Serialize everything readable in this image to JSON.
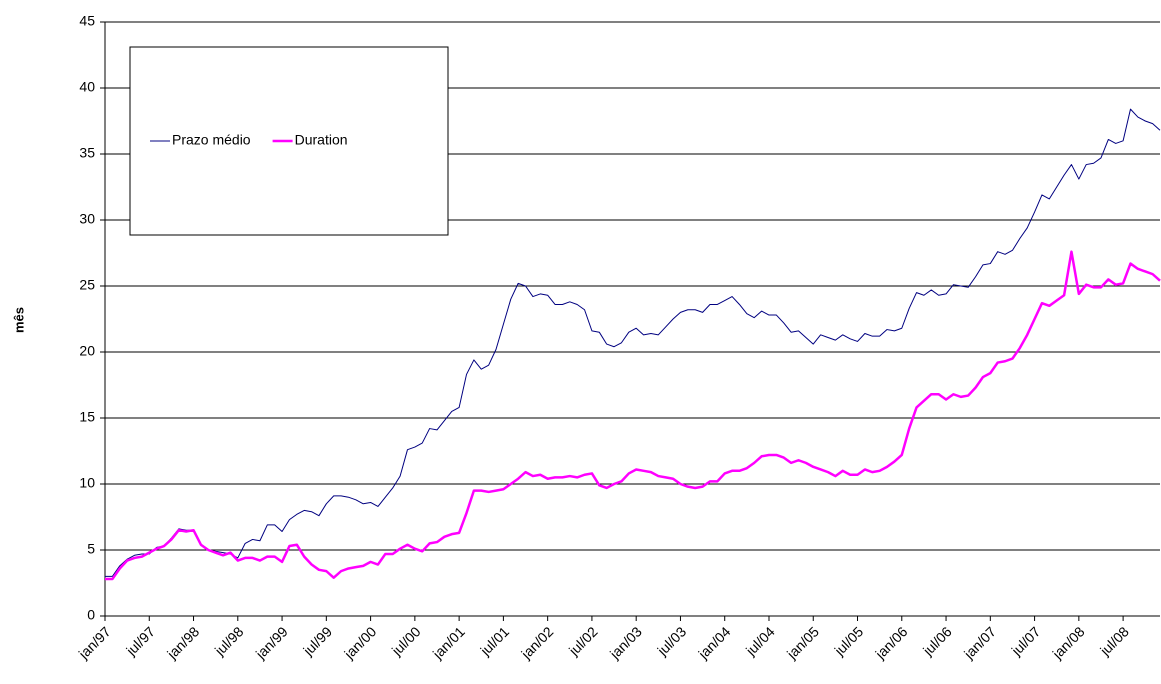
{
  "chart_data": {
    "type": "line",
    "y_label": "mês",
    "categories": [
      "jan/97",
      null,
      null,
      null,
      null,
      null,
      "jul/97",
      null,
      null,
      null,
      null,
      null,
      "jan/98",
      null,
      null,
      null,
      null,
      null,
      "jul/98",
      null,
      null,
      null,
      null,
      null,
      "jan/99",
      null,
      null,
      null,
      null,
      null,
      "jul/99",
      null,
      null,
      null,
      null,
      null,
      "jan/00",
      null,
      null,
      null,
      null,
      null,
      "jul/00",
      null,
      null,
      null,
      null,
      null,
      "jan/01",
      null,
      null,
      null,
      null,
      null,
      "jul/01",
      null,
      null,
      null,
      null,
      null,
      "jan/02",
      null,
      null,
      null,
      null,
      null,
      "jul/02",
      null,
      null,
      null,
      null,
      null,
      "jan/03",
      null,
      null,
      null,
      null,
      null,
      "jul/03",
      null,
      null,
      null,
      null,
      null,
      "jan/04",
      null,
      null,
      null,
      null,
      null,
      "jul/04",
      null,
      null,
      null,
      null,
      null,
      "jan/05",
      null,
      null,
      null,
      null,
      null,
      "jul/05",
      null,
      null,
      null,
      null,
      null,
      "jan/06",
      null,
      null,
      null,
      null,
      null,
      "jul/06",
      null,
      null,
      null,
      null,
      null,
      "jan/07",
      null,
      null,
      null,
      null,
      null,
      "jul/07",
      null,
      null,
      null,
      null,
      null,
      "jan/08",
      null,
      null,
      null,
      null,
      null,
      "jul/08",
      null,
      null,
      null,
      null,
      null
    ],
    "series": [
      {
        "name": "Prazo médio",
        "color": "#000080",
        "width": 1,
        "values": [
          3.0,
          3.0,
          3.8,
          4.3,
          4.6,
          4.7,
          4.7,
          5.2,
          5.3,
          5.9,
          6.6,
          6.5,
          6.5,
          5.4,
          5.0,
          4.9,
          4.8,
          4.7,
          4.4,
          5.5,
          5.8,
          5.7,
          6.9,
          6.9,
          6.4,
          7.3,
          7.7,
          8.0,
          7.9,
          7.6,
          8.5,
          9.1,
          9.1,
          9.0,
          8.8,
          8.5,
          8.6,
          8.3,
          9.0,
          9.7,
          10.6,
          12.6,
          12.8,
          13.1,
          14.2,
          14.1,
          14.8,
          15.5,
          15.8,
          18.3,
          19.4,
          18.7,
          19.0,
          20.2,
          22.1,
          24.0,
          25.2,
          25.0,
          24.2,
          24.4,
          24.3,
          23.6,
          23.6,
          23.8,
          23.6,
          23.2,
          21.6,
          21.5,
          20.6,
          20.4,
          20.7,
          21.5,
          21.8,
          21.3,
          21.4,
          21.3,
          21.9,
          22.5,
          23.0,
          23.2,
          23.2,
          23.0,
          23.6,
          23.6,
          23.9,
          24.2,
          23.6,
          22.9,
          22.6,
          23.1,
          22.8,
          22.8,
          22.2,
          21.5,
          21.6,
          21.1,
          20.6,
          21.3,
          21.1,
          20.9,
          21.3,
          21.0,
          20.8,
          21.4,
          21.2,
          21.2,
          21.7,
          21.6,
          21.8,
          23.3,
          24.5,
          24.3,
          24.7,
          24.3,
          24.4,
          25.1,
          25.0,
          24.9,
          25.7,
          26.6,
          26.7,
          27.6,
          27.4,
          27.7,
          28.6,
          29.4,
          30.6,
          31.9,
          31.6,
          32.5,
          33.4,
          34.2,
          33.1,
          34.2,
          34.3,
          34.7,
          36.1,
          35.8,
          36.0,
          38.4,
          37.8,
          37.5,
          37.3,
          36.8
        ]
      },
      {
        "name": "Duration",
        "color": "#ff00ff",
        "width": 2.5,
        "values": [
          2.8,
          2.8,
          3.6,
          4.2,
          4.4,
          4.5,
          4.8,
          5.1,
          5.3,
          5.8,
          6.5,
          6.4,
          6.5,
          5.4,
          5.0,
          4.8,
          4.6,
          4.8,
          4.2,
          4.4,
          4.4,
          4.2,
          4.5,
          4.5,
          4.1,
          5.3,
          5.4,
          4.5,
          3.9,
          3.5,
          3.4,
          2.9,
          3.4,
          3.6,
          3.7,
          3.8,
          4.1,
          3.9,
          4.7,
          4.7,
          5.1,
          5.4,
          5.1,
          4.9,
          5.5,
          5.6,
          6.0,
          6.2,
          6.3,
          7.8,
          9.5,
          9.5,
          9.4,
          9.5,
          9.6,
          10.0,
          10.4,
          10.9,
          10.6,
          10.7,
          10.4,
          10.5,
          10.5,
          10.6,
          10.5,
          10.7,
          10.8,
          9.9,
          9.7,
          10.0,
          10.2,
          10.8,
          11.1,
          11.0,
          10.9,
          10.6,
          10.5,
          10.4,
          10.0,
          9.8,
          9.7,
          9.8,
          10.2,
          10.2,
          10.8,
          11.0,
          11.0,
          11.2,
          11.6,
          12.1,
          12.2,
          12.2,
          12.0,
          11.6,
          11.8,
          11.6,
          11.3,
          11.1,
          10.9,
          10.6,
          11.0,
          10.7,
          10.7,
          11.1,
          10.9,
          11.0,
          11.3,
          11.7,
          12.2,
          14.2,
          15.8,
          16.3,
          16.8,
          16.8,
          16.4,
          16.8,
          16.6,
          16.7,
          17.3,
          18.1,
          18.4,
          19.2,
          19.3,
          19.5,
          20.3,
          21.3,
          22.5,
          23.7,
          23.5,
          23.9,
          24.3,
          27.6,
          24.4,
          25.1,
          24.9,
          24.9,
          25.5,
          25.1,
          25.2,
          26.7,
          26.3,
          26.1,
          25.9,
          25.4
        ]
      }
    ],
    "ylim": [
      0,
      45
    ],
    "yticks": [
      0,
      5,
      10,
      15,
      20,
      25,
      30,
      35,
      40,
      45
    ],
    "grid": true,
    "legend": "upper left"
  }
}
